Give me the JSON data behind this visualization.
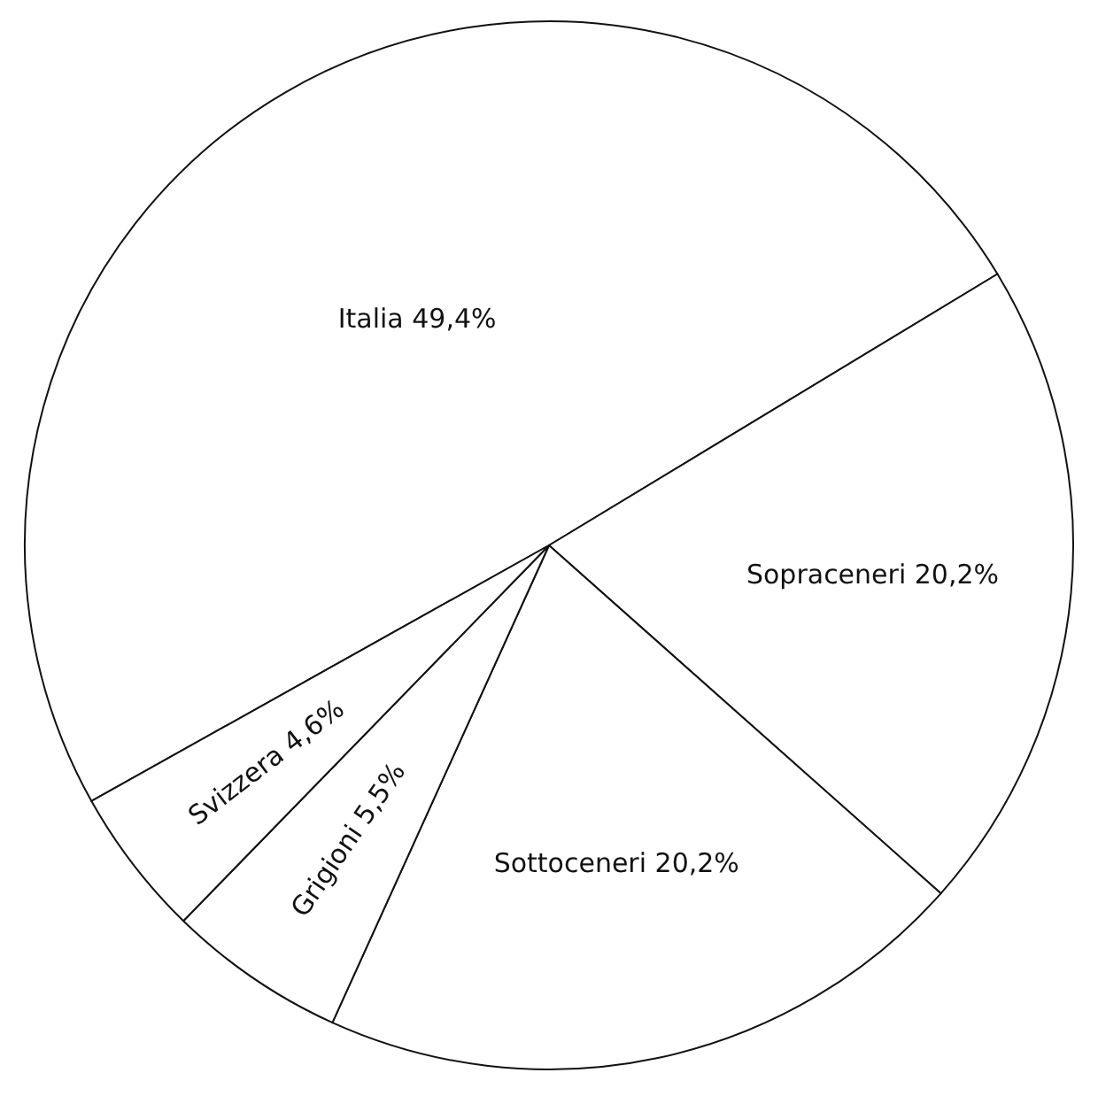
{
  "chart_data": {
    "type": "pie",
    "categories": [
      "Italia",
      "Sopraceneri",
      "Sottoceneri",
      "Grigioni",
      "Svizzera"
    ],
    "values": [
      49.4,
      20.2,
      20.2,
      5.5,
      4.6
    ],
    "value_labels": [
      "49,4%",
      "20,2%",
      "20,2%",
      "5,5%",
      "4,6%"
    ],
    "colors": [
      "#ffffff",
      "#ffffff",
      "#ffffff",
      "#ffffff",
      "#ffffff"
    ]
  }
}
